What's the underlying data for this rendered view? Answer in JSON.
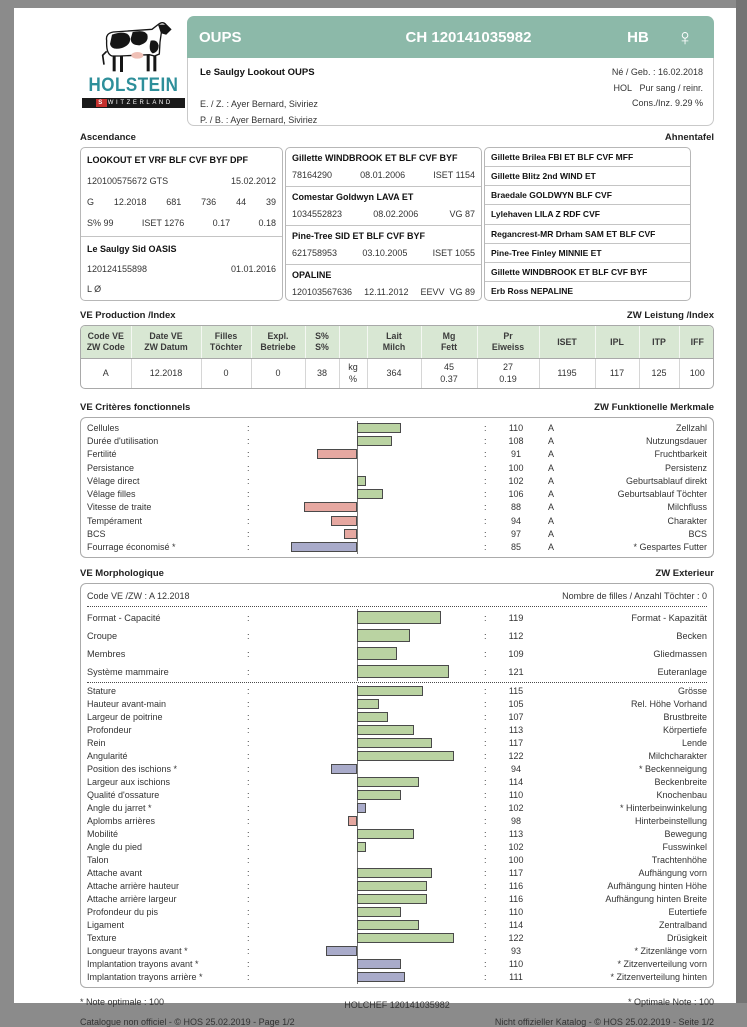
{
  "logo": {
    "title": "HOLSTEIN",
    "subtitle_first": "S",
    "subtitle_rest": "WITZERLAND",
    "cow_icon": "holstein-cow-icon"
  },
  "header": {
    "bar": {
      "name": "OUPS",
      "id": "CH 120141035982",
      "herdbook": "HB",
      "sex_symbol": "♀"
    },
    "full_name": "Le Saulgy Lookout OUPS",
    "born": "Né / Geb. : 16.02.2018",
    "breed": "HOL   Pur sang / reinr.",
    "inbreeding": "Cons./Inz. 9.29 %",
    "breeder": "E. / Z. : Ayer Bernard, Siviriez",
    "owner": "P. / B. : Ayer Bernard, Siviriez"
  },
  "pedigree": {
    "label_fr": "Ascendance",
    "label_de": "Ahnentafel",
    "sire": {
      "name": "LOOKOUT  ET VRF BLF CVF BYF DPF",
      "number": "120100575672  GTS",
      "date": "15.02.2012",
      "row3": [
        "G",
        "12.2018",
        "681",
        "736",
        "44",
        "39"
      ],
      "row4": [
        "S% 99",
        "ISET 1276",
        "0.17",
        "0.18"
      ]
    },
    "dam": {
      "name": "Le Saulgy Sid OASIS",
      "number": "120124155898",
      "date": "01.01.2016",
      "note": "L Ø"
    },
    "grandparents": [
      {
        "name": "Gillette WINDBROOK  ET BLF CVF BYF",
        "number": "78164290",
        "date": "08.01.2006",
        "index": "ISET 1154"
      },
      {
        "name": "Comestar Goldwyn LAVA  ET",
        "number": "1034552823",
        "date": "08.02.2006",
        "index": "VG 87"
      },
      {
        "name": "Pine-Tree SID  ET BLF CVF BYF",
        "number": "621758953",
        "date": "03.10.2005",
        "index": "ISET 1055"
      },
      {
        "name": "OPALINE",
        "number": "120103567636",
        "date": "12.11.2012",
        "index": "EEVV  VG 89"
      }
    ],
    "great_grandparents": [
      "Gillette Brilea FBI  ET BLF CVF MFF",
      "Gillette Blitz 2nd WIND  ET",
      "Braedale GOLDWYN  BLF CVF",
      "Lylehaven LILA Z  RDF CVF",
      "Regancrest-MR Drham SAM  ET BLF CVF",
      "Pine-Tree Finley MINNIE  ET",
      "Gillette WINDBROOK  ET BLF CVF BYF",
      "Erb Ross NEPALINE"
    ]
  },
  "production": {
    "label_fr": "VE Production /Index",
    "label_de": "ZW Leistung /Index",
    "headers": [
      [
        "Code VE",
        "ZW Code"
      ],
      [
        "Date VE",
        "ZW Datum"
      ],
      [
        "Filles",
        "Töchter"
      ],
      [
        "Expl.",
        "Betriebe"
      ],
      [
        "S%",
        "S%"
      ],
      [
        "",
        ""
      ],
      [
        "Lait",
        "Milch"
      ],
      [
        "Mg",
        "Fett"
      ],
      [
        "Pr",
        "Eiweiss"
      ],
      [
        "ISET",
        ""
      ],
      [
        "IPL",
        ""
      ],
      [
        "ITP",
        ""
      ],
      [
        "IFF",
        ""
      ]
    ],
    "row": [
      [
        "A"
      ],
      [
        "12.2018"
      ],
      [
        "0"
      ],
      [
        "0"
      ],
      [
        "38"
      ],
      [
        "kg",
        "%"
      ],
      [
        "364",
        ""
      ],
      [
        "45",
        "0.37"
      ],
      [
        "27",
        "0.19"
      ],
      [
        "1195"
      ],
      [
        "117"
      ],
      [
        "125"
      ],
      [
        "100"
      ]
    ]
  },
  "functional": {
    "label_fr": "VE Critères fonctionnels",
    "label_de": "ZW Funktionelle Merkmale",
    "rows": [
      {
        "fr": "Cellules",
        "value": 110,
        "code": "A",
        "de": "Zellzahl",
        "color": "green"
      },
      {
        "fr": "Durée d'utilisation",
        "value": 108,
        "code": "A",
        "de": "Nutzungsdauer",
        "color": "green"
      },
      {
        "fr": "Fertilité",
        "value": 91,
        "code": "A",
        "de": "Fruchtbarkeit",
        "color": "red"
      },
      {
        "fr": "Persistance",
        "value": 100,
        "code": "A",
        "de": "Persistenz",
        "color": "none"
      },
      {
        "fr": "Vêlage direct",
        "value": 102,
        "code": "A",
        "de": "Geburtsablauf direkt",
        "color": "green"
      },
      {
        "fr": "Vêlage filles",
        "value": 106,
        "code": "A",
        "de": "Geburtsablauf Töchter",
        "color": "green"
      },
      {
        "fr": "Vitesse de traite",
        "value": 88,
        "code": "A",
        "de": "Milchfluss",
        "color": "red"
      },
      {
        "fr": "Tempérament",
        "value": 94,
        "code": "A",
        "de": "Charakter",
        "color": "red"
      },
      {
        "fr": "BCS",
        "value": 97,
        "code": "A",
        "de": "BCS",
        "color": "red"
      },
      {
        "fr": "Fourrage économisé *",
        "value": 85,
        "code": "A",
        "de": "* Gespartes Futter",
        "color": "purple"
      }
    ]
  },
  "morphology": {
    "label_fr": "VE Morphologique",
    "label_de": "ZW Exterieur",
    "code_line": "Code VE /ZW : A 12.2018",
    "daughters_line": "Nombre de filles / Anzahl Töchter : 0",
    "groups": [
      {
        "fr": "Format - Capacité",
        "value": 119,
        "de": "Format - Kapazität",
        "color": "green"
      },
      {
        "fr": "Croupe",
        "value": 112,
        "de": "Becken",
        "color": "green"
      },
      {
        "fr": "Membres",
        "value": 109,
        "de": "Gliedmassen",
        "color": "green"
      },
      {
        "fr": "Système mammaire",
        "value": 121,
        "de": "Euteranlage",
        "color": "green"
      }
    ],
    "traits": [
      {
        "fr": "Stature",
        "value": 115,
        "de": "Grösse",
        "color": "green"
      },
      {
        "fr": "Hauteur avant-main",
        "value": 105,
        "de": "Rel. Höhe Vorhand",
        "color": "green"
      },
      {
        "fr": "Largeur de poitrine",
        "value": 107,
        "de": "Brustbreite",
        "color": "green"
      },
      {
        "fr": "Profondeur",
        "value": 113,
        "de": "Körpertiefe",
        "color": "green"
      },
      {
        "fr": "Rein",
        "value": 117,
        "de": "Lende",
        "color": "green"
      },
      {
        "fr": "Angularité",
        "value": 122,
        "de": "Milchcharakter",
        "color": "green"
      },
      {
        "fr": "Position des ischions *",
        "value": 94,
        "de": "* Beckenneigung",
        "color": "purple"
      },
      {
        "fr": "Largeur aux ischions",
        "value": 114,
        "de": "Beckenbreite",
        "color": "green"
      },
      {
        "fr": "Qualité d'ossature",
        "value": 110,
        "de": "Knochenbau",
        "color": "green"
      },
      {
        "fr": "Angle du jarret *",
        "value": 102,
        "de": "* Hinterbeinwinkelung",
        "color": "purple"
      },
      {
        "fr": "Aplombs arrières",
        "value": 98,
        "de": "Hinterbeinstellung",
        "color": "red"
      },
      {
        "fr": "Mobilité",
        "value": 113,
        "de": "Bewegung",
        "color": "green"
      },
      {
        "fr": "Angle du pied",
        "value": 102,
        "de": "Fusswinkel",
        "color": "green"
      },
      {
        "fr": "Talon",
        "value": 100,
        "de": "Trachtenhöhe",
        "color": "none"
      },
      {
        "fr": "Attache avant",
        "value": 117,
        "de": "Aufhängung vorn",
        "color": "green"
      },
      {
        "fr": "Attache arrière hauteur",
        "value": 116,
        "de": "Aufhängung hinten Höhe",
        "color": "green"
      },
      {
        "fr": "Attache arrière largeur",
        "value": 116,
        "de": "Aufhängung hinten Breite",
        "color": "green"
      },
      {
        "fr": "Profondeur du pis",
        "value": 110,
        "de": "Eutertiefe",
        "color": "green"
      },
      {
        "fr": "Ligament",
        "value": 114,
        "de": "Zentralband",
        "color": "green"
      },
      {
        "fr": "Texture",
        "value": 122,
        "de": "Drüsigkeit",
        "color": "green"
      },
      {
        "fr": "Longueur trayons avant *",
        "value": 93,
        "de": "* Zitzenlänge vorn",
        "color": "purple"
      },
      {
        "fr": "Implantation trayons avant *",
        "value": 110,
        "de": "* Zitzenverteilung vorn",
        "color": "purple"
      },
      {
        "fr": "Implantation trayons arrière *",
        "value": 111,
        "de": "* Zitzenverteilung hinten",
        "color": "purple"
      }
    ]
  },
  "footer": {
    "note_fr": "* Note optimale : 100",
    "center": "HOLCHEF 120141035982",
    "note_de": "* Optimale Note : 100",
    "catalog_fr": "Catalogue non officiel  -  © HOS 25.02.2019  -  Page 1/2",
    "catalog_de": "Nicht offizieller Katalog  -  © HOS 25.02.2019  -  Seite 1/2"
  },
  "colors": {
    "header_green": "#8cb9a9",
    "table_header_green": "#d8e7d3",
    "bar_green": "#bad3a2",
    "bar_red": "#e6a8a1",
    "bar_purple": "#a9abca",
    "logo_teal": "#2e8f9a",
    "logo_red": "#c5312e"
  },
  "chart_data": [
    {
      "type": "bar",
      "title": "VE Critères fonctionnels / ZW Funktionelle Merkmale",
      "orientation": "horizontal",
      "baseline": 100,
      "categories": [
        "Cellules",
        "Durée d'utilisation",
        "Fertilité",
        "Persistance",
        "Vêlage direct",
        "Vêlage filles",
        "Vitesse de traite",
        "Tempérament",
        "BCS",
        "Fourrage économisé *"
      ],
      "values": [
        110,
        108,
        91,
        100,
        102,
        106,
        88,
        94,
        97,
        85
      ],
      "legend_position": "none"
    },
    {
      "type": "bar",
      "title": "VE Morphologique / ZW Exterieur",
      "orientation": "horizontal",
      "baseline": 100,
      "categories": [
        "Format - Capacité",
        "Croupe",
        "Membres",
        "Système mammaire",
        "Stature",
        "Hauteur avant-main",
        "Largeur de poitrine",
        "Profondeur",
        "Rein",
        "Angularité",
        "Position des ischions *",
        "Largeur aux ischions",
        "Qualité d'ossature",
        "Angle du jarret *",
        "Aplombs arrières",
        "Mobilité",
        "Angle du pied",
        "Talon",
        "Attache avant",
        "Attache arrière hauteur",
        "Attache arrière largeur",
        "Profondeur du pis",
        "Ligament",
        "Texture",
        "Longueur trayons avant *",
        "Implantation trayons avant *",
        "Implantation trayons arrière *"
      ],
      "values": [
        119,
        112,
        109,
        121,
        115,
        105,
        107,
        113,
        117,
        122,
        94,
        114,
        110,
        102,
        98,
        113,
        102,
        100,
        117,
        116,
        116,
        110,
        114,
        122,
        93,
        110,
        111
      ],
      "legend_position": "none"
    }
  ]
}
